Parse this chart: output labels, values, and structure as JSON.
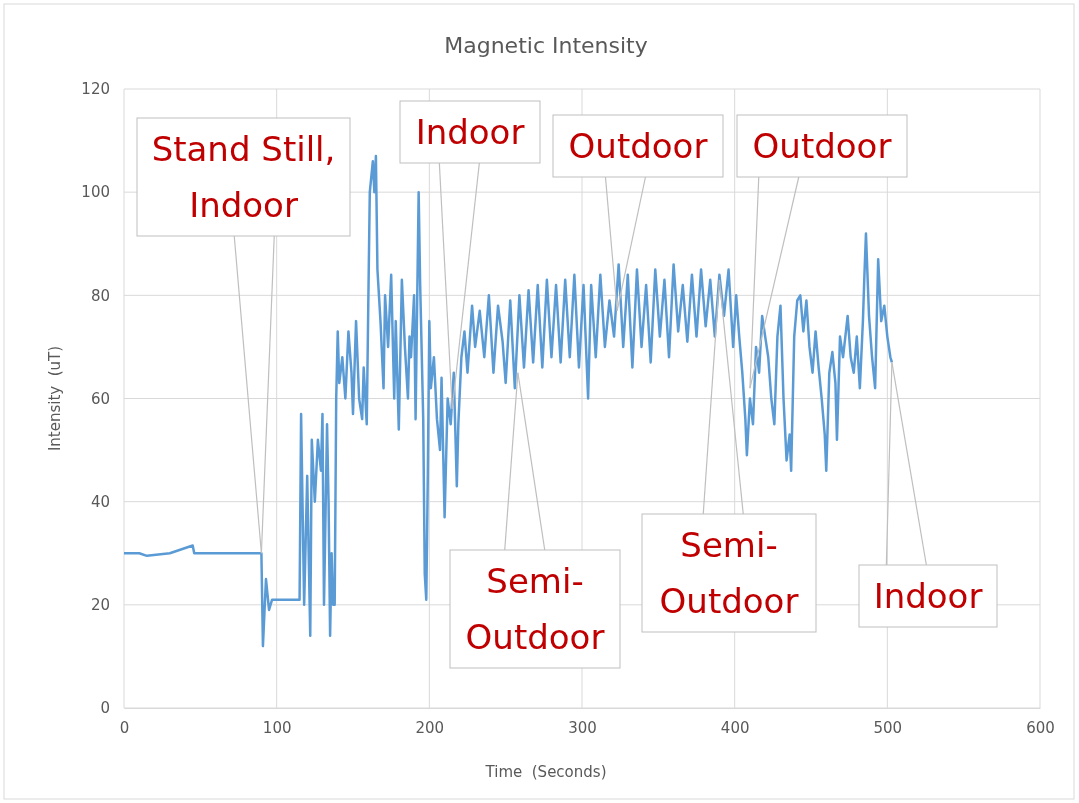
{
  "chart_data": {
    "type": "line",
    "title": "Magnetic Intensity",
    "xlabel": "Time  (Seconds)",
    "ylabel": "Intensity  (uT)",
    "xlim": [
      0,
      600
    ],
    "xticks": [
      0,
      100,
      200,
      300,
      400,
      500,
      600
    ],
    "ylim": [
      0,
      120
    ],
    "yticks": [
      0,
      20,
      40,
      60,
      80,
      100,
      120
    ],
    "grid": true,
    "marker": "none",
    "line_style": "solid",
    "series": [
      {
        "color": "#5b9bd5",
        "x": [
          0,
          10,
          15,
          30,
          45,
          46,
          60,
          89,
          90,
          91,
          93,
          95,
          97,
          115,
          116,
          118,
          120,
          122,
          123,
          125,
          127,
          129,
          130,
          131,
          133,
          134,
          135,
          136,
          137,
          138,
          139,
          140,
          141,
          143,
          145,
          147,
          149,
          150,
          152,
          154,
          156,
          157,
          159,
          160,
          161,
          163,
          164,
          165,
          166,
          168,
          170,
          171,
          173,
          175,
          177,
          178,
          180,
          182,
          184,
          186,
          187,
          188,
          190,
          191,
          193,
          194,
          196,
          197,
          198,
          199,
          200,
          201,
          203,
          205,
          207,
          208,
          210,
          212,
          214,
          216,
          218,
          219,
          221,
          223,
          225,
          228,
          230,
          233,
          236,
          239,
          242,
          245,
          248,
          250,
          253,
          256,
          259,
          262,
          265,
          268,
          271,
          274,
          277,
          280,
          283,
          286,
          289,
          292,
          295,
          298,
          301,
          304,
          306,
          309,
          312,
          315,
          318,
          321,
          324,
          327,
          330,
          333,
          336,
          339,
          342,
          345,
          348,
          351,
          354,
          357,
          360,
          363,
          366,
          369,
          372,
          375,
          378,
          381,
          384,
          387,
          390,
          393,
          396,
          399,
          401,
          403,
          405,
          407,
          408,
          410,
          412,
          414,
          416,
          418,
          420,
          422,
          424,
          426,
          428,
          430,
          432,
          434,
          436,
          437,
          439,
          441,
          443,
          445,
          447,
          449,
          451,
          453,
          455,
          457,
          459,
          460,
          462,
          464,
          466,
          467,
          469,
          471,
          474,
          476,
          478,
          480,
          482,
          484,
          485,
          486,
          488,
          490,
          492,
          494,
          496,
          498,
          500,
          502,
          503
        ],
        "values": [
          30,
          30,
          29.5,
          30,
          31.5,
          30,
          30,
          30,
          30,
          12,
          25,
          19,
          21,
          21,
          57,
          20,
          45,
          14,
          52,
          40,
          52,
          46,
          57,
          20,
          55,
          40,
          14,
          30,
          20,
          20,
          60,
          73,
          63,
          68,
          60,
          73,
          65,
          57,
          75,
          60,
          56,
          66,
          55,
          78,
          100,
          106,
          100,
          107,
          85,
          75,
          62,
          80,
          70,
          84,
          60,
          75,
          54,
          83,
          70,
          60,
          72,
          68,
          80,
          56,
          100,
          82,
          56,
          26,
          21,
          45,
          75,
          62,
          68,
          56,
          50,
          64,
          37,
          60,
          55,
          65,
          43,
          55,
          68,
          73,
          65,
          78,
          70,
          77,
          68,
          80,
          65,
          78,
          71,
          63,
          79,
          62,
          80,
          66,
          81,
          67,
          82,
          66,
          83,
          68,
          82,
          67,
          83,
          68,
          84,
          66,
          82,
          60,
          82,
          68,
          84,
          70,
          79,
          72,
          86,
          70,
          84,
          66,
          85,
          70,
          82,
          67,
          85,
          72,
          83,
          68,
          86,
          73,
          82,
          71,
          84,
          72,
          85,
          74,
          83,
          72,
          84,
          76,
          85,
          70,
          80,
          72,
          65,
          56,
          49,
          60,
          55,
          70,
          65,
          76,
          72,
          68,
          60,
          55,
          72,
          78,
          60,
          48,
          53,
          46,
          72,
          79,
          80,
          73,
          79,
          70,
          65,
          73,
          66,
          60,
          53,
          46,
          65,
          69,
          63,
          52,
          72,
          68,
          76,
          68,
          65,
          72,
          62,
          75,
          84,
          92,
          76,
          68,
          62,
          87,
          75,
          78,
          72,
          68,
          67
        ]
      }
    ],
    "annotations": [
      {
        "text": "Stand Still,\nIndoor",
        "x": 90,
        "y": 30
      },
      {
        "text": "Indoor",
        "x": 215,
        "y": 58
      },
      {
        "text": "Outdoor",
        "x": 323,
        "y": 77
      },
      {
        "text": "Outdoor",
        "x": 410,
        "y": 62
      },
      {
        "text": "Semi-\nOutdoor",
        "x": 258,
        "y": 65
      },
      {
        "text": "Semi-\nOutdoor",
        "x": 390,
        "y": 83
      },
      {
        "text": "Indoor",
        "x": 503,
        "y": 67
      }
    ]
  }
}
